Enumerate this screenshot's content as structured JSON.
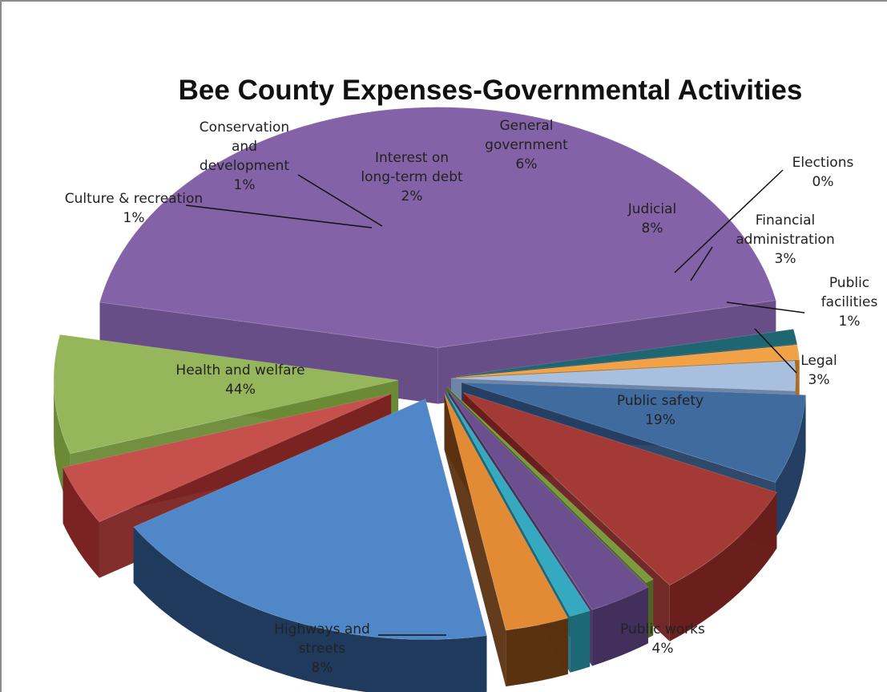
{
  "chart_data": {
    "type": "pie",
    "style": "3d-exploded",
    "title": "Bee County Expenses-Governmental Activities",
    "legend": "none",
    "slices": [
      {
        "name": "General government",
        "label_lines": [
          "General",
          "government"
        ],
        "pct_label": "6%",
        "value": 6,
        "top_color": "#3f6b9f",
        "side_color": "#243f63"
      },
      {
        "name": "Judicial",
        "label_lines": [
          "Judicial"
        ],
        "pct_label": "8%",
        "value": 8,
        "top_color": "#a33a35",
        "side_color": "#6a1f1c"
      },
      {
        "name": "Elections",
        "label_lines": [
          "Elections"
        ],
        "pct_label": "0%",
        "value": 0.4,
        "top_color": "#7a9a3c",
        "side_color": "#4d6424"
      },
      {
        "name": "Financial administration",
        "label_lines": [
          "Financial",
          "administration"
        ],
        "pct_label": "3%",
        "value": 3,
        "top_color": "#6b4f8f",
        "side_color": "#432f5c"
      },
      {
        "name": "Public facilities",
        "label_lines": [
          "Public",
          "facilities"
        ],
        "pct_label": "1%",
        "value": 1,
        "top_color": "#35a9bf",
        "side_color": "#1e6876"
      },
      {
        "name": "Legal",
        "label_lines": [
          "Legal"
        ],
        "pct_label": "3%",
        "value": 3,
        "top_color": "#e38a35",
        "side_color": "#5a3210"
      },
      {
        "name": "Public safety",
        "label_lines": [
          "Public safety"
        ],
        "pct_label": "19%",
        "value": 19,
        "top_color": "#4f87c9",
        "side_color": "#1f3a5c"
      },
      {
        "name": "Public works",
        "label_lines": [
          "Public works"
        ],
        "pct_label": "4%",
        "value": 4,
        "top_color": "#c5504c",
        "side_color": "#7a2322"
      },
      {
        "name": "Highways and streets",
        "label_lines": [
          "Highways and",
          "streets"
        ],
        "pct_label": "8%",
        "value": 8,
        "top_color": "#95b65a",
        "side_color": "#6a8a36"
      },
      {
        "name": "Health and welfare",
        "label_lines": [
          "Health and welfare"
        ],
        "pct_label": "44%",
        "value": 44,
        "top_color": "#8462a7",
        "side_color": "#5f4480"
      },
      {
        "name": "Culture & recreation",
        "label_lines": [
          "Culture & recreation"
        ],
        "pct_label": "1%",
        "value": 1,
        "top_color": "#1f6673",
        "side_color": "#123f48"
      },
      {
        "name": "Conservation and development",
        "label_lines": [
          "Conservation",
          "and",
          "development"
        ],
        "pct_label": "1%",
        "value": 1,
        "top_color": "#f2a246",
        "side_color": "#a86a20"
      },
      {
        "name": "Interest on long-term debt",
        "label_lines": [
          "Interest on",
          "long-term debt"
        ],
        "pct_label": "2%",
        "value": 2,
        "top_color": "#a8bfdf",
        "side_color": "#6f85a5"
      }
    ]
  }
}
